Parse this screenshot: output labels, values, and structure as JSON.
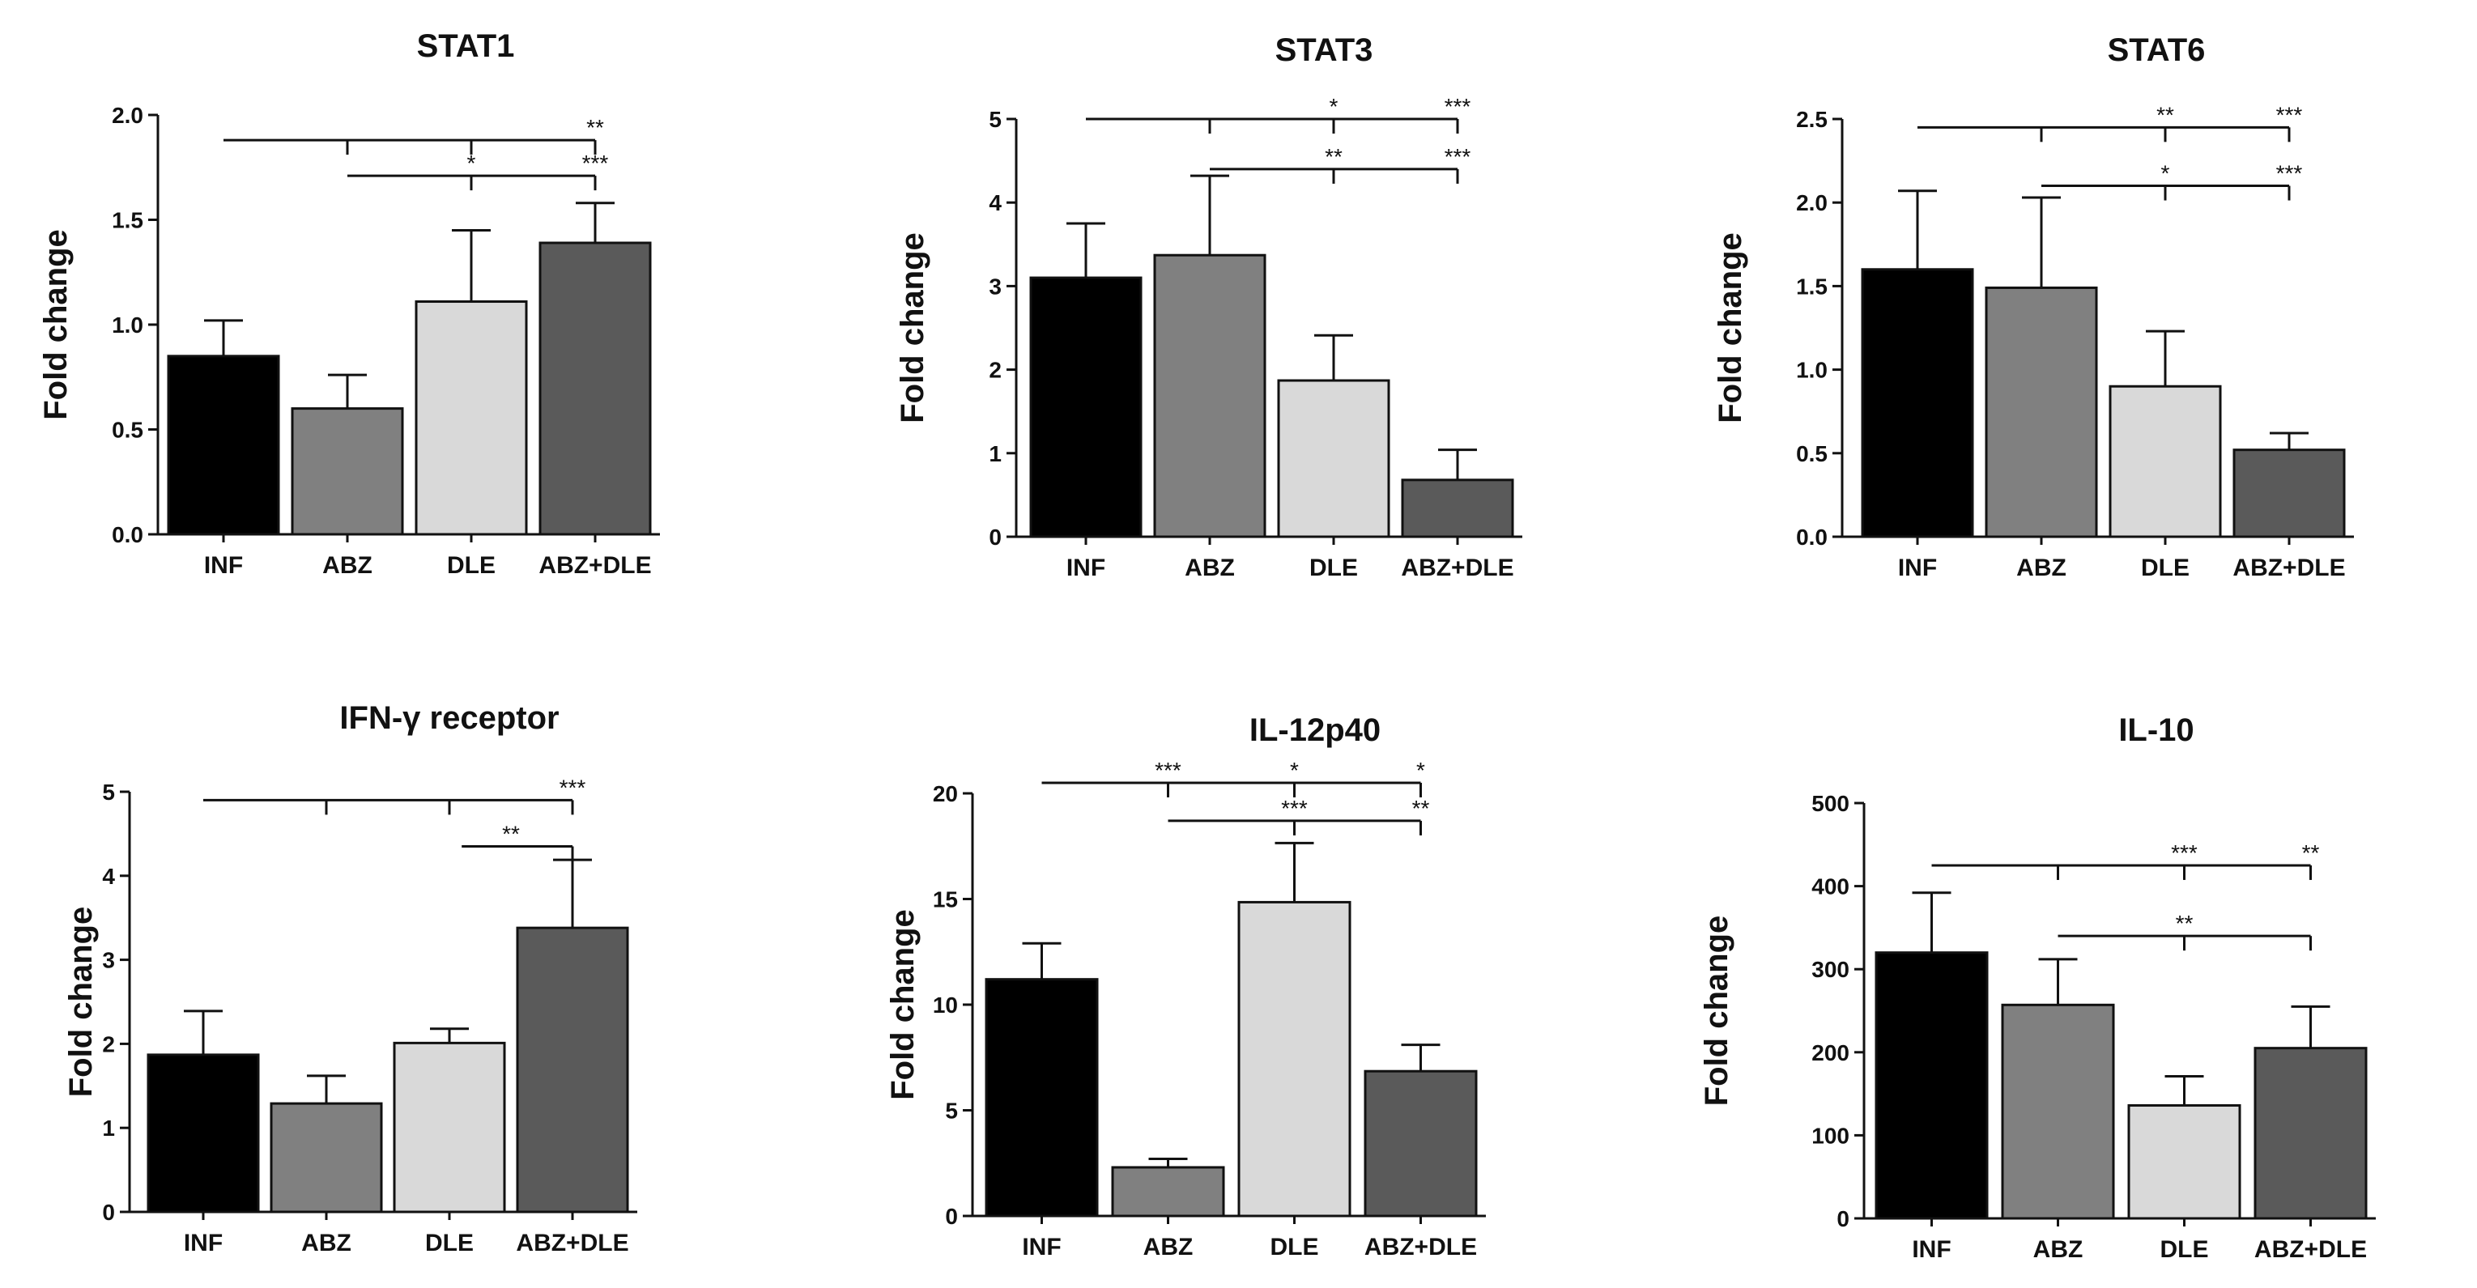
{
  "figure": {
    "bar_colors": [
      "#000000",
      "#808080",
      "#d9d9d9",
      "#5a5a5a"
    ]
  },
  "chart_data": [
    {
      "type": "bar",
      "title": "STAT1",
      "ylabel": "Fold change",
      "categories": [
        "INF",
        "ABZ",
        "DLE",
        "ABZ+DLE"
      ],
      "values": [
        0.85,
        0.6,
        1.11,
        1.39
      ],
      "errors": [
        0.17,
        0.16,
        0.34,
        0.19
      ],
      "ylim": [
        0,
        2.0
      ],
      "yticks": [
        "0.0",
        "0.5",
        "1.0",
        "1.5",
        "2.0"
      ],
      "brackets": [
        {
          "from": 0,
          "drops": [
            1,
            2
          ],
          "to": 3,
          "y": 1.88,
          "labels": [
            {
              "at": 3,
              "text": "**"
            }
          ]
        },
        {
          "from": 1,
          "drops": [
            2
          ],
          "to": 3,
          "y": 1.71,
          "labels": [
            {
              "at": 2,
              "text": "*"
            },
            {
              "at": 3,
              "text": "***"
            }
          ]
        }
      ]
    },
    {
      "type": "bar",
      "title": "STAT3",
      "ylabel": "Fold change",
      "categories": [
        "INF",
        "ABZ",
        "DLE",
        "ABZ+DLE"
      ],
      "values": [
        3.1,
        3.37,
        1.87,
        0.68
      ],
      "errors": [
        0.65,
        0.95,
        0.54,
        0.36
      ],
      "ylim": [
        0,
        5
      ],
      "yticks": [
        "0",
        "1",
        "2",
        "3",
        "4",
        "5"
      ],
      "brackets": [
        {
          "from": 0,
          "drops": [
            1,
            2
          ],
          "to": 3,
          "y": 5.0,
          "labels": [
            {
              "at": 2,
              "text": "*"
            },
            {
              "at": 3,
              "text": "***"
            }
          ]
        },
        {
          "from": 1,
          "drops": [
            2
          ],
          "to": 3,
          "y": 4.4,
          "labels": [
            {
              "at": 2,
              "text": "**"
            },
            {
              "at": 3,
              "text": "***"
            }
          ]
        }
      ]
    },
    {
      "type": "bar",
      "title": "STAT6",
      "ylabel": "Fold change",
      "categories": [
        "INF",
        "ABZ",
        "DLE",
        "ABZ+DLE"
      ],
      "values": [
        1.6,
        1.49,
        0.9,
        0.52
      ],
      "errors": [
        0.47,
        0.54,
        0.33,
        0.1
      ],
      "ylim": [
        0,
        2.5
      ],
      "yticks": [
        "0.0",
        "0.5",
        "1.0",
        "1.5",
        "2.0",
        "2.5"
      ],
      "brackets": [
        {
          "from": 0,
          "drops": [
            1,
            2
          ],
          "to": 3,
          "y": 2.45,
          "labels": [
            {
              "at": 2,
              "text": "**"
            },
            {
              "at": 3,
              "text": "***"
            }
          ]
        },
        {
          "from": 1,
          "drops": [
            2
          ],
          "to": 3,
          "y": 2.1,
          "labels": [
            {
              "at": 2,
              "text": "*"
            },
            {
              "at": 3,
              "text": "***"
            }
          ]
        }
      ]
    },
    {
      "type": "bar",
      "title": "IFN-γ receptor",
      "ylabel": "Fold change",
      "categories": [
        "INF",
        "ABZ",
        "DLE",
        "ABZ+DLE"
      ],
      "values": [
        1.87,
        1.29,
        2.01,
        3.38
      ],
      "errors": [
        0.52,
        0.33,
        0.17,
        0.81
      ],
      "ylim": [
        0,
        5
      ],
      "yticks": [
        "0",
        "1",
        "2",
        "3",
        "4",
        "5"
      ],
      "brackets": [
        {
          "from": 0,
          "drops": [
            1,
            2
          ],
          "to": 3,
          "y": 4.9,
          "labels": [
            {
              "at": 3,
              "text": "***"
            }
          ]
        },
        {
          "from": 2.1,
          "drops": [],
          "to": 3,
          "y": 4.35,
          "labels": [
            {
              "at": 2.5,
              "text": "**"
            }
          ]
        }
      ]
    },
    {
      "type": "bar",
      "title": "IL-12p40",
      "ylabel": "Fold change",
      "categories": [
        "INF",
        "ABZ",
        "DLE",
        "ABZ+DLE"
      ],
      "values": [
        11.2,
        2.3,
        14.85,
        6.85
      ],
      "errors": [
        1.7,
        0.4,
        2.8,
        1.25
      ],
      "ylim": [
        0,
        20
      ],
      "yticks": [
        "0",
        "5",
        "10",
        "15",
        "20"
      ],
      "brackets": [
        {
          "from": 0,
          "drops": [
            1,
            2
          ],
          "to": 3,
          "y": 20.5,
          "labels": [
            {
              "at": 1,
              "text": "***"
            },
            {
              "at": 2,
              "text": "*"
            },
            {
              "at": 3,
              "text": "*"
            }
          ]
        },
        {
          "from": 1,
          "drops": [
            2
          ],
          "to": 3,
          "y": 18.7,
          "labels": [
            {
              "at": 2,
              "text": "***"
            },
            {
              "at": 3,
              "text": "**"
            }
          ]
        }
      ]
    },
    {
      "type": "bar",
      "title": "IL-10",
      "ylabel": "Fold change",
      "categories": [
        "INF",
        "ABZ",
        "DLE",
        "ABZ+DLE"
      ],
      "values": [
        320,
        257,
        136,
        205
      ],
      "errors": [
        72,
        55,
        35,
        50
      ],
      "ylim": [
        0,
        500
      ],
      "yticks": [
        "0",
        "100",
        "200",
        "300",
        "400",
        "500"
      ],
      "brackets": [
        {
          "from": 0,
          "drops": [
            1,
            2
          ],
          "to": 3,
          "y": 425,
          "labels": [
            {
              "at": 2,
              "text": "***"
            },
            {
              "at": 3,
              "text": "**"
            }
          ]
        },
        {
          "from": 1,
          "drops": [
            2
          ],
          "to": 3,
          "y": 340,
          "labels": [
            {
              "at": 2,
              "text": "**"
            }
          ]
        }
      ]
    }
  ]
}
